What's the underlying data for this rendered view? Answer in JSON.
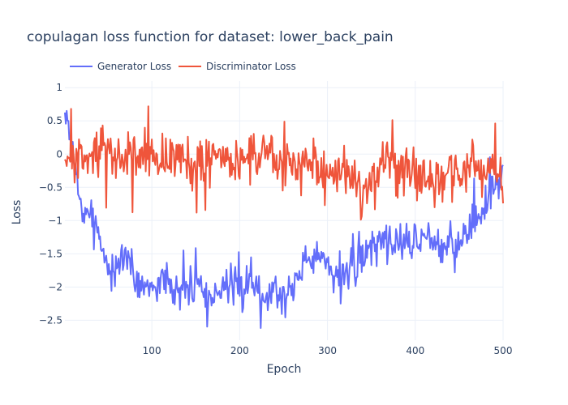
{
  "chart_data": {
    "type": "line",
    "title": "copulagan loss function for dataset: lower_back_pain",
    "xlabel": "Epoch",
    "ylabel": "Loss",
    "xlim": [
      1,
      500
    ],
    "ylim": [
      -2.8,
      1.1
    ],
    "x_ticks": [
      100,
      200,
      300,
      400,
      500
    ],
    "y_ticks": [
      1,
      0.5,
      0,
      -0.5,
      -1,
      -1.5,
      -2,
      -2.5
    ],
    "x_tick_labels": [
      "100",
      "200",
      "300",
      "400",
      "500"
    ],
    "y_tick_labels": [
      "1",
      "0.5",
      "0",
      "−0.5",
      "−1",
      "−1.5",
      "−2",
      "−2.5"
    ],
    "grid": true,
    "legend_placement": "top-left",
    "series": [
      {
        "name": "Generator Loss",
        "color": "#636efa",
        "anchors": [
          [
            1,
            0.55
          ],
          [
            5,
            0.45
          ],
          [
            10,
            0.1
          ],
          [
            15,
            -0.5
          ],
          [
            20,
            -0.95
          ],
          [
            25,
            -0.8
          ],
          [
            30,
            -1.05
          ],
          [
            35,
            -0.9
          ],
          [
            40,
            -1.3
          ],
          [
            45,
            -1.5
          ],
          [
            50,
            -1.6
          ],
          [
            55,
            -1.75
          ],
          [
            60,
            -1.85
          ],
          [
            65,
            -1.55
          ],
          [
            70,
            -1.5
          ],
          [
            75,
            -1.6
          ],
          [
            80,
            -1.8
          ],
          [
            90,
            -1.95
          ],
          [
            100,
            -2.0
          ],
          [
            110,
            -1.9
          ],
          [
            120,
            -1.95
          ],
          [
            130,
            -2.05
          ],
          [
            140,
            -2.0
          ],
          [
            150,
            -1.9
          ],
          [
            160,
            -1.95
          ],
          [
            170,
            -2.2
          ],
          [
            180,
            -1.95
          ],
          [
            190,
            -2.05
          ],
          [
            200,
            -2.05
          ],
          [
            210,
            -1.95
          ],
          [
            220,
            -2.0
          ],
          [
            230,
            -2.1
          ],
          [
            240,
            -2.05
          ],
          [
            250,
            -2.15
          ],
          [
            260,
            -1.95
          ],
          [
            270,
            -1.7
          ],
          [
            280,
            -1.5
          ],
          [
            290,
            -1.6
          ],
          [
            300,
            -1.65
          ],
          [
            310,
            -1.75
          ],
          [
            320,
            -1.8
          ],
          [
            330,
            -1.75
          ],
          [
            340,
            -1.55
          ],
          [
            350,
            -1.35
          ],
          [
            360,
            -1.25
          ],
          [
            370,
            -1.3
          ],
          [
            380,
            -1.3
          ],
          [
            390,
            -1.35
          ],
          [
            400,
            -1.3
          ],
          [
            410,
            -1.25
          ],
          [
            420,
            -1.2
          ],
          [
            430,
            -1.3
          ],
          [
            440,
            -1.3
          ],
          [
            450,
            -1.35
          ],
          [
            460,
            -1.2
          ],
          [
            470,
            -1.0
          ],
          [
            480,
            -0.8
          ],
          [
            490,
            -0.55
          ],
          [
            500,
            -0.3
          ]
        ],
        "amplitude": 0.22,
        "seed": 7
      },
      {
        "name": "Discriminator Loss",
        "color": "#ef553b",
        "anchors": [
          [
            1,
            -0.05
          ],
          [
            10,
            -0.05
          ],
          [
            20,
            -0.1
          ],
          [
            30,
            0.0
          ],
          [
            40,
            0.1
          ],
          [
            50,
            0.0
          ],
          [
            60,
            -0.05
          ],
          [
            80,
            -0.05
          ],
          [
            100,
            0.0
          ],
          [
            120,
            -0.05
          ],
          [
            140,
            -0.1
          ],
          [
            160,
            -0.1
          ],
          [
            180,
            -0.15
          ],
          [
            200,
            -0.1
          ],
          [
            220,
            -0.05
          ],
          [
            240,
            -0.1
          ],
          [
            260,
            -0.15
          ],
          [
            280,
            -0.15
          ],
          [
            300,
            -0.2
          ],
          [
            320,
            -0.25
          ],
          [
            330,
            -0.35
          ],
          [
            340,
            -0.5
          ],
          [
            350,
            -0.45
          ],
          [
            360,
            -0.4
          ],
          [
            370,
            -0.3
          ],
          [
            380,
            -0.2
          ],
          [
            390,
            -0.2
          ],
          [
            400,
            -0.25
          ],
          [
            410,
            -0.3
          ],
          [
            420,
            -0.35
          ],
          [
            430,
            -0.35
          ],
          [
            440,
            -0.3
          ],
          [
            450,
            -0.35
          ],
          [
            460,
            -0.3
          ],
          [
            470,
            -0.25
          ],
          [
            480,
            -0.3
          ],
          [
            490,
            -0.3
          ],
          [
            500,
            -0.4
          ]
        ],
        "amplitude": 0.28,
        "seed": 13
      }
    ]
  }
}
